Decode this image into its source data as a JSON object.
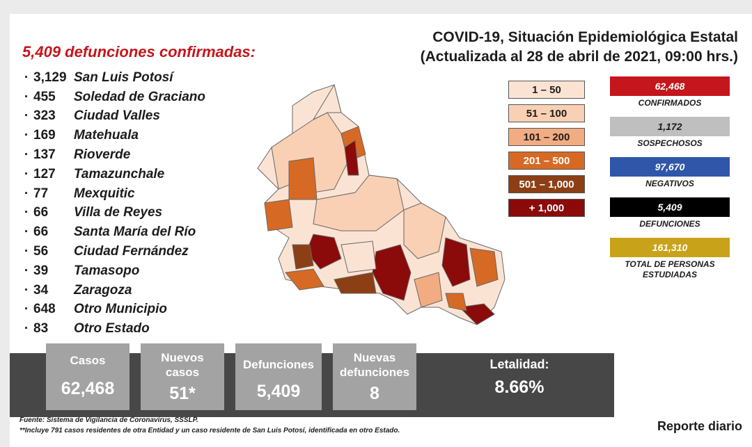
{
  "header": {
    "title_line1": "COVID-19, Situación Epidemiológica Estatal",
    "title_line2": "(Actualizada al 28 de abril de 2021, 09:00 hrs.)"
  },
  "deaths_title": "5,409 defunciones confirmadas:",
  "municipalities": [
    {
      "value": "3,129",
      "name": "San Luis Potosí"
    },
    {
      "value": "455",
      "name": "Soledad de Graciano"
    },
    {
      "value": "323",
      "name": "Ciudad Valles"
    },
    {
      "value": "169",
      "name": "Matehuala"
    },
    {
      "value": "137",
      "name": "Rioverde"
    },
    {
      "value": "127",
      "name": "Tamazunchale"
    },
    {
      "value": "77",
      "name": "Mexquitic"
    },
    {
      "value": "66",
      "name": "Villa de Reyes"
    },
    {
      "value": "66",
      "name": "Santa María del Río"
    },
    {
      "value": "56",
      "name": "Ciudad Fernández"
    },
    {
      "value": "39",
      "name": "Tamasopo"
    },
    {
      "value": "34",
      "name": "Zaragoza"
    },
    {
      "value": "648",
      "name": "Otro Municipio"
    },
    {
      "value": "83",
      "name": "Otro Estado"
    }
  ],
  "legend": [
    {
      "label": "1 – 50",
      "color": "#fbe3d4"
    },
    {
      "label": "51 – 100",
      "color": "#f9d0b4"
    },
    {
      "label": "101 – 200",
      "color": "#f2ac82"
    },
    {
      "label": "201 – 500",
      "color": "#d66a24"
    },
    {
      "label": "501 – 1,000",
      "color": "#8c3f14"
    },
    {
      "label": "+ 1,000",
      "color": "#8b0a0a"
    }
  ],
  "stats": [
    {
      "value": "62,468",
      "label": "CONFIRMADOS",
      "color": "#c4161c"
    },
    {
      "value": "1,172",
      "label": "SOSPECHOSOS",
      "color": "#bfbfbf"
    },
    {
      "value": "97,670",
      "label": "NEGATIVOS",
      "color": "#2f56a8"
    },
    {
      "value": "5,409",
      "label": "DEFUNCIONES",
      "color": "#000000"
    },
    {
      "value": "161,310",
      "label": "TOTAL DE PERSONAS ESTUDIADAS",
      "color": "#c8a31a"
    }
  ],
  "summary": {
    "casos_label": "Casos",
    "casos_value": "62,468",
    "nuevos_label": "Nuevos casos",
    "nuevos_value": "51*",
    "defunciones_label": "Defunciones",
    "defunciones_value": "5,409",
    "nuevas_def_label": "Nuevas defunciones",
    "nuevas_def_value": "8",
    "letalidad_label": "Letalidad:",
    "letalidad_value": "8.66%"
  },
  "footer": {
    "source": "Fuente: Sistema de Vigilancia de Coronavirus, SSSLP.",
    "note": "**Incluye 791 casos residentes de otra Entidad y un caso residente de San Luis Potosí, identificada en otro Estado.",
    "report": "Reporte diario"
  }
}
